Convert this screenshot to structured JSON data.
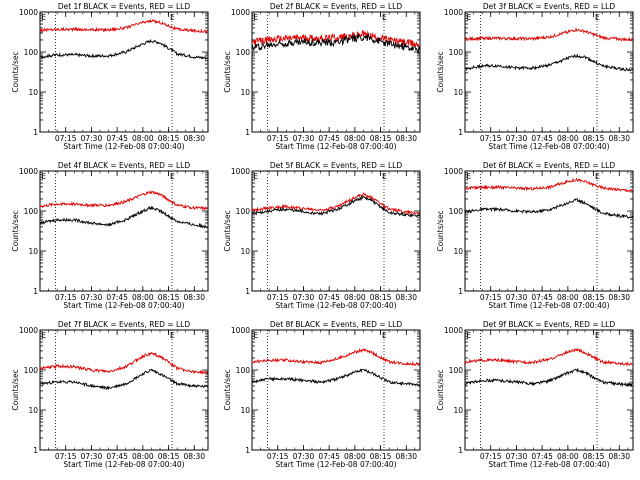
{
  "colors": {
    "events": "#000000",
    "lld": "#e00000",
    "axis": "#000000",
    "background": "#ffffff"
  },
  "chart_data": [
    {
      "type": "line",
      "title": "Det 1f BLACK = Events, RED = LLD",
      "xlabel": "Start Time (12-Feb-08 07:00:40)",
      "ylabel": "Counts/sec",
      "yscale": "log",
      "ylim": [
        1,
        1000
      ],
      "xlim": [
        "07:00",
        "08:38"
      ],
      "x_ticks": [
        "07:15",
        "07:30",
        "07:45",
        "08:00",
        "08:15",
        "08:30"
      ],
      "y_ticks": [
        "1",
        "10",
        "100",
        "1000"
      ],
      "markers": [
        {
          "label": "E",
          "x": "07:02"
        },
        {
          "label": "E",
          "x": "08:17"
        }
      ],
      "dotted_lines": [
        "07:09",
        "08:17"
      ],
      "x": [
        "07:00",
        "07:10",
        "07:20",
        "07:30",
        "07:40",
        "07:50",
        "08:00",
        "08:05",
        "08:10",
        "08:20",
        "08:30",
        "08:38"
      ],
      "series": [
        {
          "name": "LLD",
          "values": [
            350,
            370,
            370,
            360,
            360,
            400,
            550,
            600,
            550,
            370,
            340,
            330
          ]
        },
        {
          "name": "Events",
          "values": [
            75,
            85,
            85,
            80,
            80,
            100,
            160,
            190,
            170,
            90,
            75,
            70
          ]
        }
      ]
    },
    {
      "type": "line",
      "title": "Det 2f BLACK = Events, RED = LLD",
      "xlabel": "Start Time (12-Feb-08 07:00:40)",
      "ylabel": "Counts/sec",
      "yscale": "log",
      "ylim": [
        1,
        1000
      ],
      "xlim": [
        "07:00",
        "08:38"
      ],
      "x_ticks": [
        "07:15",
        "07:30",
        "07:45",
        "08:00",
        "08:15",
        "08:30"
      ],
      "y_ticks": [
        "1",
        "10",
        "100",
        "1000"
      ],
      "markers": [
        {
          "label": "E",
          "x": "07:02"
        },
        {
          "label": "E",
          "x": "08:17"
        }
      ],
      "dotted_lines": [
        "07:09",
        "08:17"
      ],
      "x": [
        "07:00",
        "07:10",
        "07:20",
        "07:30",
        "07:40",
        "07:50",
        "08:00",
        "08:05",
        "08:10",
        "08:20",
        "08:30",
        "08:38"
      ],
      "series": [
        {
          "name": "LLD",
          "values": [
            180,
            200,
            220,
            230,
            220,
            230,
            260,
            280,
            250,
            200,
            170,
            150
          ]
        },
        {
          "name": "Events",
          "values": [
            130,
            150,
            170,
            180,
            170,
            180,
            220,
            240,
            210,
            160,
            130,
            110
          ]
        }
      ]
    },
    {
      "type": "line",
      "title": "Det 3f BLACK = Events, RED = LLD",
      "xlabel": "Start Time (12-Feb-08 07:00:40)",
      "ylabel": "Counts/sec",
      "yscale": "log",
      "ylim": [
        1,
        1000
      ],
      "xlim": [
        "07:00",
        "08:38"
      ],
      "x_ticks": [
        "07:15",
        "07:30",
        "07:45",
        "08:00",
        "08:15",
        "08:30"
      ],
      "y_ticks": [
        "1",
        "10",
        "100",
        "1000"
      ],
      "markers": [
        {
          "label": "E",
          "x": "07:02"
        },
        {
          "label": "E",
          "x": "08:17"
        }
      ],
      "dotted_lines": [
        "07:09",
        "08:17"
      ],
      "x": [
        "07:00",
        "07:10",
        "07:20",
        "07:30",
        "07:40",
        "07:50",
        "08:00",
        "08:05",
        "08:10",
        "08:20",
        "08:30",
        "08:38"
      ],
      "series": [
        {
          "name": "LLD",
          "values": [
            210,
            220,
            220,
            215,
            215,
            240,
            320,
            360,
            330,
            230,
            210,
            200
          ]
        },
        {
          "name": "Events",
          "values": [
            38,
            45,
            45,
            40,
            40,
            48,
            70,
            80,
            75,
            45,
            38,
            35
          ]
        }
      ]
    },
    {
      "type": "line",
      "title": "Det 4f BLACK = Events, RED = LLD",
      "xlabel": "Start Time (12-Feb-08 07:00:40)",
      "ylabel": "Counts/sec",
      "yscale": "log",
      "ylim": [
        1,
        1000
      ],
      "xlim": [
        "07:00",
        "08:38"
      ],
      "x_ticks": [
        "07:15",
        "07:30",
        "07:45",
        "08:00",
        "08:15",
        "08:30"
      ],
      "y_ticks": [
        "1",
        "10",
        "100",
        "1000"
      ],
      "markers": [
        {
          "label": "E",
          "x": "07:02"
        },
        {
          "label": "E",
          "x": "08:17"
        }
      ],
      "dotted_lines": [
        "07:09",
        "08:17"
      ],
      "x": [
        "07:00",
        "07:10",
        "07:20",
        "07:30",
        "07:40",
        "07:50",
        "08:00",
        "08:05",
        "08:10",
        "08:20",
        "08:30",
        "08:38"
      ],
      "series": [
        {
          "name": "LLD",
          "values": [
            130,
            150,
            150,
            140,
            140,
            170,
            260,
            300,
            260,
            140,
            120,
            115
          ]
        },
        {
          "name": "Events",
          "values": [
            50,
            60,
            60,
            50,
            45,
            60,
            100,
            120,
            100,
            55,
            45,
            40
          ]
        }
      ]
    },
    {
      "type": "line",
      "title": "Det 5f BLACK = Events, RED = LLD",
      "xlabel": "Start Time (12-Feb-08 07:00:40)",
      "ylabel": "Counts/sec",
      "yscale": "log",
      "ylim": [
        1,
        1000
      ],
      "xlim": [
        "07:00",
        "08:38"
      ],
      "x_ticks": [
        "07:15",
        "07:30",
        "07:45",
        "08:00",
        "08:15",
        "08:30"
      ],
      "y_ticks": [
        "1",
        "10",
        "100",
        "1000"
      ],
      "markers": [
        {
          "label": "E",
          "x": "07:02"
        },
        {
          "label": "E",
          "x": "08:17"
        }
      ],
      "dotted_lines": [
        "07:09",
        "08:17"
      ],
      "x": [
        "07:00",
        "07:10",
        "07:20",
        "07:30",
        "07:40",
        "07:50",
        "08:00",
        "08:05",
        "08:10",
        "08:20",
        "08:30",
        "08:38"
      ],
      "series": [
        {
          "name": "LLD",
          "values": [
            105,
            120,
            130,
            115,
            105,
            130,
            220,
            260,
            220,
            110,
            95,
            90
          ]
        },
        {
          "name": "Events",
          "values": [
            85,
            100,
            110,
            95,
            85,
            110,
            180,
            220,
            180,
            90,
            80,
            75
          ]
        }
      ]
    },
    {
      "type": "line",
      "title": "Det 6f BLACK = Events, RED = LLD",
      "xlabel": "Start Time (12-Feb-08 07:00:40)",
      "ylabel": "Counts/sec",
      "yscale": "log",
      "ylim": [
        1,
        1000
      ],
      "xlim": [
        "07:00",
        "08:38"
      ],
      "x_ticks": [
        "07:15",
        "07:30",
        "07:45",
        "08:00",
        "08:15",
        "08:30"
      ],
      "y_ticks": [
        "1",
        "10",
        "100",
        "1000"
      ],
      "markers": [
        {
          "label": "E",
          "x": "07:02"
        },
        {
          "label": "E",
          "x": "08:17"
        }
      ],
      "dotted_lines": [
        "07:09",
        "08:17"
      ],
      "x": [
        "07:00",
        "07:10",
        "07:20",
        "07:30",
        "07:40",
        "07:50",
        "08:00",
        "08:05",
        "08:10",
        "08:20",
        "08:30",
        "08:38"
      ],
      "series": [
        {
          "name": "LLD",
          "values": [
            370,
            390,
            390,
            370,
            360,
            400,
            550,
            600,
            540,
            380,
            340,
            320
          ]
        },
        {
          "name": "Events",
          "values": [
            95,
            110,
            110,
            100,
            95,
            110,
            160,
            190,
            160,
            90,
            75,
            70
          ]
        }
      ]
    },
    {
      "type": "line",
      "title": "Det 7f BLACK = Events, RED = LLD",
      "xlabel": "Start Time (12-Feb-08 07:00:40)",
      "ylabel": "Counts/sec",
      "yscale": "log",
      "ylim": [
        1,
        1000
      ],
      "xlim": [
        "07:00",
        "08:38"
      ],
      "x_ticks": [
        "07:15",
        "07:30",
        "07:45",
        "08:00",
        "08:15",
        "08:30"
      ],
      "y_ticks": [
        "1",
        "10",
        "100",
        "1000"
      ],
      "markers": [
        {
          "label": "E",
          "x": "07:02"
        },
        {
          "label": "E",
          "x": "08:17"
        }
      ],
      "dotted_lines": [
        "07:09",
        "08:17"
      ],
      "x": [
        "07:00",
        "07:10",
        "07:20",
        "07:30",
        "07:40",
        "07:50",
        "08:00",
        "08:05",
        "08:10",
        "08:20",
        "08:30",
        "08:38"
      ],
      "series": [
        {
          "name": "LLD",
          "values": [
            110,
            125,
            120,
            100,
            90,
            120,
            220,
            260,
            220,
            110,
            90,
            85
          ]
        },
        {
          "name": "Events",
          "values": [
            45,
            50,
            50,
            40,
            35,
            45,
            80,
            100,
            80,
            45,
            40,
            38
          ]
        }
      ]
    },
    {
      "type": "line",
      "title": "Det 8f BLACK = Events, RED = LLD",
      "xlabel": "Start Time (12-Feb-08 07:00:40)",
      "ylabel": "Counts/sec",
      "yscale": "log",
      "ylim": [
        1,
        1000
      ],
      "xlim": [
        "07:00",
        "08:38"
      ],
      "x_ticks": [
        "07:15",
        "07:30",
        "07:45",
        "08:00",
        "08:15",
        "08:30"
      ],
      "y_ticks": [
        "1",
        "10",
        "100",
        "1000"
      ],
      "markers": [
        {
          "label": "E",
          "x": "07:02"
        },
        {
          "label": "E",
          "x": "08:17"
        }
      ],
      "dotted_lines": [
        "07:09",
        "08:17"
      ],
      "x": [
        "07:00",
        "07:10",
        "07:20",
        "07:30",
        "07:40",
        "07:50",
        "08:00",
        "08:05",
        "08:10",
        "08:20",
        "08:30",
        "08:38"
      ],
      "series": [
        {
          "name": "LLD",
          "values": [
            160,
            175,
            175,
            160,
            155,
            190,
            280,
            320,
            270,
            160,
            145,
            140
          ]
        },
        {
          "name": "Events",
          "values": [
            50,
            60,
            60,
            55,
            50,
            60,
            90,
            100,
            85,
            50,
            45,
            42
          ]
        }
      ]
    },
    {
      "type": "line",
      "title": "Det 9f BLACK = Events, RED = LLD",
      "xlabel": "Start Time (12-Feb-08 07:00:40)",
      "ylabel": "Counts/sec",
      "yscale": "log",
      "ylim": [
        1,
        1000
      ],
      "xlim": [
        "07:00",
        "08:38"
      ],
      "x_ticks": [
        "07:15",
        "07:30",
        "07:45",
        "08:00",
        "08:15",
        "08:30"
      ],
      "y_ticks": [
        "1",
        "10",
        "100",
        "1000"
      ],
      "markers": [
        {
          "label": "E",
          "x": "07:02"
        },
        {
          "label": "E",
          "x": "08:17"
        }
      ],
      "dotted_lines": [
        "07:09",
        "08:17"
      ],
      "x": [
        "07:00",
        "07:10",
        "07:20",
        "07:30",
        "07:40",
        "07:50",
        "08:00",
        "08:05",
        "08:10",
        "08:20",
        "08:30",
        "08:38"
      ],
      "series": [
        {
          "name": "LLD",
          "values": [
            160,
            175,
            175,
            160,
            155,
            190,
            280,
            320,
            270,
            160,
            145,
            140
          ]
        },
        {
          "name": "Events",
          "values": [
            45,
            55,
            55,
            50,
            45,
            55,
            85,
            100,
            85,
            50,
            45,
            42
          ]
        }
      ]
    }
  ]
}
